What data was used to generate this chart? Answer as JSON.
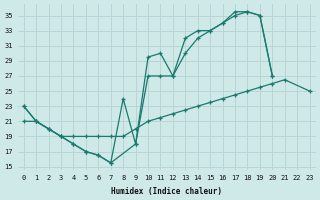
{
  "background_color": "#cfe8e8",
  "grid_color": "#b8d4d4",
  "line_color": "#1a7a6e",
  "xlabel": "Humidex (Indice chaleur)",
  "xlim": [
    -0.5,
    23.5
  ],
  "ylim": [
    14.5,
    36.5
  ],
  "yticks": [
    15,
    17,
    19,
    21,
    23,
    25,
    27,
    29,
    31,
    33,
    35
  ],
  "xticks": [
    0,
    1,
    2,
    3,
    4,
    5,
    6,
    7,
    8,
    9,
    10,
    11,
    12,
    13,
    14,
    15,
    16,
    17,
    18,
    19,
    20,
    21,
    22,
    23
  ],
  "series": [
    {
      "x": [
        0,
        1,
        2,
        3,
        4,
        5,
        6,
        7,
        8,
        9,
        10,
        11,
        12,
        13,
        14,
        15,
        16,
        17,
        18,
        19,
        20
      ],
      "y": [
        23,
        21,
        20,
        19,
        18,
        17,
        16.5,
        15.5,
        24,
        18,
        29.5,
        30,
        27,
        32,
        33,
        33,
        34,
        35.5,
        35.5,
        35,
        27
      ]
    },
    {
      "x": [
        0,
        1,
        2,
        3,
        4,
        5,
        6,
        7,
        9,
        10,
        11,
        12,
        13,
        14,
        15,
        16,
        17,
        18,
        19,
        20
      ],
      "y": [
        23,
        21,
        20,
        19,
        18,
        17,
        16.5,
        15.5,
        18,
        27,
        27,
        27,
        30,
        32,
        33,
        34,
        35,
        35.5,
        35,
        27
      ]
    },
    {
      "x": [
        0,
        1,
        2,
        3,
        4,
        5,
        6,
        7,
        8,
        9,
        10,
        11,
        12,
        13,
        14,
        15,
        16,
        17,
        18,
        19,
        20,
        21,
        23
      ],
      "y": [
        21,
        21,
        20,
        19,
        19,
        19,
        19,
        19,
        19,
        20,
        21,
        21.5,
        22,
        22.5,
        23,
        23.5,
        24,
        24.5,
        25,
        25.5,
        26,
        26.5,
        25
      ]
    }
  ]
}
